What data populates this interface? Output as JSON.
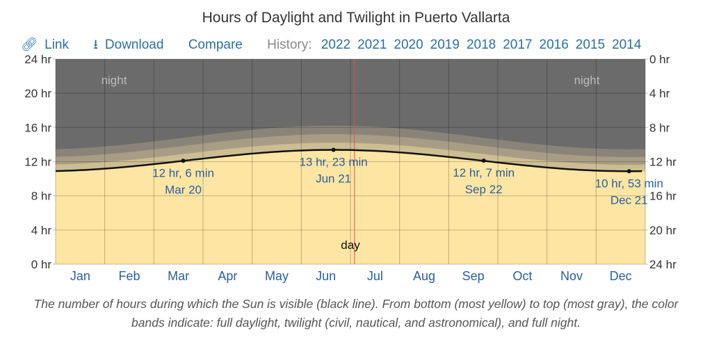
{
  "title": "Hours of Daylight and Twilight in Puerto Vallarta",
  "toolbar": {
    "link": "Link",
    "download": "Download",
    "compare": "Compare",
    "history_label": "History:",
    "years": [
      "2022",
      "2021",
      "2020",
      "2019",
      "2018",
      "2017",
      "2016",
      "2015",
      "2014"
    ]
  },
  "colors": {
    "night": "#6b6b6b",
    "day": "#fde5a3",
    "link": "#2a6fa8",
    "today": "#e05050"
  },
  "chart_data": {
    "type": "area",
    "title": "Hours of Daylight and Twilight in Puerto Vallarta",
    "ylim": [
      0,
      24
    ],
    "left_ticks": [
      "24 hr",
      "20 hr",
      "16 hr",
      "12 hr",
      "8 hr",
      "4 hr",
      "0 hr"
    ],
    "right_ticks": [
      "0 hr",
      "4 hr",
      "8 hr",
      "12 hr",
      "16 hr",
      "20 hr",
      "24 hr"
    ],
    "months": [
      "Jan",
      "Feb",
      "Mar",
      "Apr",
      "May",
      "Jun",
      "Jul",
      "Aug",
      "Sep",
      "Oct",
      "Nov",
      "Dec"
    ],
    "daylight_min_hours": 10.88,
    "daylight_max_hours": 13.38,
    "twilight_hours": {
      "civil": 0.8,
      "nautical": 0.95,
      "astronomical": 0.95
    },
    "today_day_of_year": 185,
    "annotations": [
      {
        "day": 79,
        "hours": 12.1,
        "value": "12 hr, 6 min",
        "date": "Mar 20"
      },
      {
        "day": 172,
        "hours": 13.38,
        "value": "13 hr, 23 min",
        "date": "Jun 21"
      },
      {
        "day": 265,
        "hours": 12.12,
        "value": "12 hr, 7 min",
        "date": "Sep 22"
      },
      {
        "day": 355,
        "hours": 10.88,
        "value": "10 hr, 53 min",
        "date": "Dec 21"
      }
    ],
    "region_labels": {
      "night": "night",
      "day": "day"
    }
  },
  "caption": "The number of hours during which the Sun is visible (black line). From bottom (most yellow) to top (most gray), the color bands indicate: full daylight, twilight (civil, nautical, and astronomical), and full night."
}
